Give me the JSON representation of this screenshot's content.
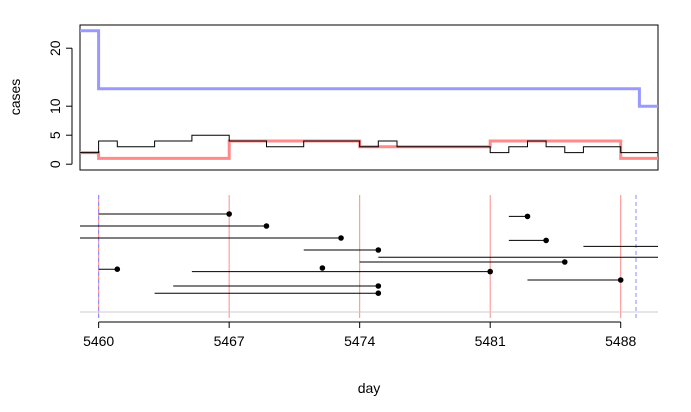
{
  "chart_data": [
    {
      "type": "line",
      "ylabel": "cases",
      "xlim": [
        5459,
        5490
      ],
      "ylim": [
        -1,
        24
      ],
      "yticks": [
        0,
        5,
        10,
        20
      ],
      "series": [
        {
          "color": "#9999ff",
          "steps": [
            [
              5459,
              23
            ],
            [
              5460,
              23
            ],
            [
              5460,
              13
            ],
            [
              5489,
              13
            ],
            [
              5489,
              10
            ],
            [
              5490,
              10
            ]
          ]
        },
        {
          "color": "#ff8a8a",
          "steps": [
            [
              5459,
              2
            ],
            [
              5460,
              2
            ],
            [
              5460,
              1
            ],
            [
              5467,
              1
            ],
            [
              5467,
              4
            ],
            [
              5474,
              4
            ],
            [
              5474,
              3
            ],
            [
              5481,
              3
            ],
            [
              5481,
              4
            ],
            [
              5488,
              4
            ],
            [
              5488,
              1
            ],
            [
              5490,
              1
            ]
          ]
        },
        {
          "color": "#000000",
          "steps": [
            [
              5459,
              2
            ],
            [
              5460,
              2
            ],
            [
              5460,
              4
            ],
            [
              5461,
              4
            ],
            [
              5461,
              3
            ],
            [
              5463,
              3
            ],
            [
              5463,
              4
            ],
            [
              5465,
              4
            ],
            [
              5465,
              5
            ],
            [
              5467,
              5
            ],
            [
              5467,
              4
            ],
            [
              5469,
              4
            ],
            [
              5469,
              3
            ],
            [
              5471,
              3
            ],
            [
              5471,
              4
            ],
            [
              5474,
              4
            ],
            [
              5474,
              3
            ],
            [
              5475,
              3
            ],
            [
              5475,
              4
            ],
            [
              5476,
              4
            ],
            [
              5476,
              3
            ],
            [
              5481,
              3
            ],
            [
              5481,
              2
            ],
            [
              5482,
              2
            ],
            [
              5482,
              3
            ],
            [
              5483,
              3
            ],
            [
              5483,
              4
            ],
            [
              5484,
              4
            ],
            [
              5484,
              3
            ],
            [
              5485,
              3
            ],
            [
              5485,
              2
            ],
            [
              5486,
              2
            ],
            [
              5486,
              3
            ],
            [
              5488,
              3
            ],
            [
              5488,
              2
            ],
            [
              5490,
              2
            ]
          ]
        }
      ]
    },
    {
      "type": "scatter",
      "xlabel": "day",
      "xlim": [
        5459,
        5490
      ],
      "xticks": [
        5460,
        5467,
        5474,
        5481,
        5488
      ],
      "vlines_red": [
        5460,
        5467,
        5474,
        5481,
        5488
      ],
      "vlines_blue": [
        5460,
        5490
      ],
      "segments": [
        {
          "x0": 5460,
          "x1": 5467,
          "row": 1,
          "end": true
        },
        {
          "x0": 5459,
          "x1": 5469,
          "row": 2,
          "end": true
        },
        {
          "x0": 5459,
          "x1": 5473,
          "row": 3,
          "end": true
        },
        {
          "x0": 5471,
          "x1": 5475,
          "row": 4,
          "end": true
        },
        {
          "x0": 5474,
          "x1": 5485,
          "row": 5,
          "end": true
        },
        {
          "x0": 5475,
          "x1": 5490,
          "row": 4.6,
          "end": false
        },
        {
          "x0": 5486,
          "x1": 5490,
          "row": 3.7,
          "end": false
        },
        {
          "x0": 5460,
          "x1": 5461,
          "row": 5.6,
          "end": true
        },
        {
          "x0": 5472,
          "x1": 5472,
          "row": 5.5,
          "end": true
        },
        {
          "x0": 5465,
          "x1": 5481,
          "row": 5.8,
          "end": true
        },
        {
          "x0": 5482,
          "x1": 5484,
          "row": 3.2,
          "end": true
        },
        {
          "x0": 5483,
          "x1": 5488,
          "row": 6.5,
          "end": true
        },
        {
          "x0": 5464,
          "x1": 5475,
          "row": 7.0,
          "end": true
        },
        {
          "x0": 5463,
          "x1": 5475,
          "row": 7.6,
          "end": true
        },
        {
          "x0": 5482,
          "x1": 5483,
          "row": 1.2,
          "end": true
        }
      ]
    }
  ]
}
